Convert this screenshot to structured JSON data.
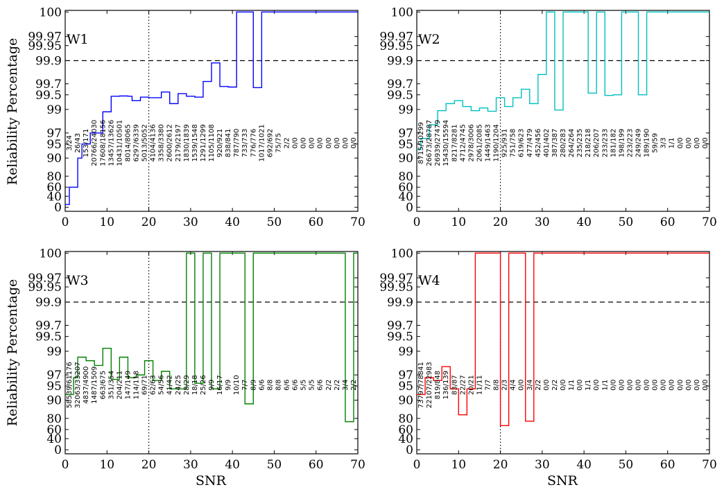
{
  "figure": {
    "ylabel": "Reliability Percentage",
    "xlabel": "SNR",
    "y_ticks": [
      "0",
      "40",
      "60",
      "80",
      "90",
      "95",
      "97",
      "99",
      "99.5",
      "99.7",
      "99.9",
      "99.95",
      "99.97",
      "100"
    ],
    "x_ticks": [
      "0",
      "10",
      "20",
      "30",
      "40",
      "50",
      "60",
      "70"
    ]
  },
  "chart_data": [
    {
      "type": "line",
      "step": true,
      "label": "W1",
      "color": "#0000ff",
      "xlim": [
        0,
        70
      ],
      "ylim": [
        0,
        100
      ],
      "y_scale": "nonlinear reliability scale (ticks 0 … 100)",
      "reference_lines": {
        "vertical_dotted_x": 20,
        "horizontal_dashed_y": 99.9
      },
      "x": [
        0,
        1,
        2,
        3,
        4,
        5,
        6,
        7,
        8,
        9,
        10,
        11,
        12,
        13,
        14,
        15,
        16,
        17,
        18,
        19,
        20,
        21,
        22,
        23,
        24,
        25,
        26,
        27,
        28,
        29,
        30,
        31,
        32,
        33,
        34,
        35,
        36,
        37,
        38,
        39,
        40,
        41,
        42,
        43,
        44,
        45,
        46,
        47,
        48,
        49,
        50,
        51,
        52,
        53,
        54,
        55,
        56,
        57,
        58,
        59,
        60,
        61,
        62,
        63,
        64,
        65,
        66,
        67,
        68,
        69,
        70
      ],
      "y": [
        10,
        60,
        60,
        90,
        95,
        95,
        97,
        97,
        97,
        98.8,
        98.8,
        99.45,
        99.45,
        99.46,
        99.46,
        99.45,
        99.3,
        99.3,
        99.42,
        99.42,
        99.4,
        99.4,
        99.4,
        99.55,
        99.55,
        99.2,
        99.2,
        99.52,
        99.52,
        99.45,
        99.45,
        99.42,
        99.42,
        99.72,
        99.72,
        99.88,
        99.88,
        99.65,
        99.65,
        99.64,
        99.64,
        100,
        100,
        100,
        100,
        99.63,
        99.63,
        100,
        100,
        100,
        100,
        100,
        100,
        100,
        100,
        100,
        100,
        100,
        100,
        100,
        100,
        100,
        100,
        100,
        100,
        100,
        100,
        100,
        100,
        100,
        100
      ],
      "annotations": [
        "3/24",
        "26/43",
        "153/171",
        "20766/24030",
        "17608/18156",
        "13457/13626",
        "10431/10501",
        "8014/8065",
        "6297/6339",
        "5013/5052",
        "4104/4136",
        "3358/3380",
        "2600/2612",
        "2179/2197",
        "1830/1839",
        "1539/1548",
        "1291/1299",
        "1105/1108",
        "920/921",
        "838/841",
        "787/790",
        "733/733",
        "776/776",
        "1017/1021",
        "692/692",
        "75/75",
        "2/2",
        "0/0",
        "0/0",
        "0/0",
        "0/0",
        "0/0",
        "0/0",
        "0/0",
        "0/0"
      ]
    },
    {
      "type": "line",
      "step": true,
      "label": "W2",
      "color": "#00bfbf",
      "xlim": [
        0,
        70
      ],
      "ylim": [
        0,
        100
      ],
      "y_scale": "nonlinear reliability scale (ticks 0 … 100)",
      "reference_lines": {
        "vertical_dotted_x": 20,
        "horizontal_dashed_y": 99.9
      },
      "x": [
        0,
        1,
        2,
        3,
        4,
        5,
        6,
        7,
        8,
        9,
        10,
        11,
        12,
        13,
        14,
        15,
        16,
        17,
        18,
        19,
        20,
        21,
        22,
        23,
        24,
        25,
        26,
        27,
        28,
        29,
        30,
        31,
        32,
        33,
        34,
        35,
        36,
        37,
        38,
        39,
        40,
        41,
        42,
        43,
        44,
        45,
        46,
        47,
        48,
        49,
        50,
        51,
        52,
        53,
        54,
        55,
        56,
        57,
        58,
        59,
        60,
        61,
        62,
        63,
        64,
        65,
        66,
        67,
        68,
        69,
        70
      ],
      "y": [
        93,
        96,
        96,
        97.7,
        97.7,
        98.9,
        98.9,
        99.2,
        99.2,
        99.3,
        99.3,
        99.1,
        99.1,
        98.9,
        98.9,
        99.05,
        99.05,
        98.85,
        98.85,
        99.4,
        99.4,
        99.1,
        99.1,
        99.4,
        99.4,
        99.6,
        99.6,
        99.2,
        99.2,
        99.78,
        99.78,
        100,
        100,
        98.95,
        98.95,
        100,
        100,
        100,
        100,
        100,
        100,
        99.53,
        99.53,
        100,
        100,
        99.48,
        99.48,
        99.5,
        99.5,
        100,
        100,
        100,
        100,
        99.5,
        99.5,
        100,
        100,
        100,
        100,
        100,
        100,
        100,
        100,
        100,
        100,
        100,
        100,
        100,
        100,
        100,
        100
      ],
      "annotations": [
        "8715/10299",
        "26673/28787",
        "26939/27479",
        "15430/15594",
        "8217/8281",
        "4712/4745",
        "2978/3006",
        "2061/2085",
        "1449/1463",
        "1190/1204",
        "925/931",
        "751/758",
        "619/623",
        "477/479",
        "452/456",
        "401/402",
        "387/387",
        "280/283",
        "264/264",
        "235/235",
        "218/218",
        "206/207",
        "233/233",
        "181/182",
        "198/199",
        "223/223",
        "249/249",
        "189/190",
        "59/59",
        "3/3",
        "1/1",
        "0/0",
        "0/0",
        "0/0",
        "0/0"
      ]
    },
    {
      "type": "line",
      "step": true,
      "label": "W3",
      "color": "#008000",
      "xlim": [
        0,
        70
      ],
      "ylim": [
        0,
        100
      ],
      "y_scale": "nonlinear reliability scale (ticks 0 … 100)",
      "reference_lines": {
        "vertical_dotted_x": 20,
        "horizontal_dashed_y": 99.9
      },
      "x": [
        0,
        1,
        2,
        3,
        4,
        5,
        6,
        7,
        8,
        9,
        10,
        11,
        12,
        13,
        14,
        15,
        16,
        17,
        18,
        19,
        20,
        21,
        22,
        23,
        24,
        25,
        26,
        27,
        28,
        29,
        30,
        31,
        32,
        33,
        34,
        35,
        36,
        37,
        38,
        39,
        40,
        41,
        42,
        43,
        44,
        45,
        46,
        47,
        48,
        49,
        50,
        51,
        52,
        53,
        54,
        55,
        56,
        57,
        58,
        59,
        60,
        61,
        62,
        63,
        64,
        65,
        66,
        67,
        68,
        69,
        70
      ],
      "y": [
        92,
        92,
        96.5,
        98.5,
        98.5,
        98.2,
        98.2,
        97.8,
        97.8,
        99.1,
        99.1,
        96.2,
        96.2,
        98.5,
        98.5,
        96.5,
        96.5,
        97,
        97,
        98.2,
        98.2,
        96,
        96,
        97.3,
        97.3,
        94,
        94,
        94,
        94,
        100,
        100,
        95.5,
        95.5,
        100,
        100,
        94,
        94,
        100,
        100,
        100,
        100,
        100,
        100,
        88,
        88,
        100,
        100,
        100,
        100,
        100,
        100,
        100,
        100,
        100,
        100,
        100,
        100,
        100,
        100,
        100,
        100,
        100,
        100,
        100,
        100,
        100,
        100,
        74,
        74,
        100,
        100
      ],
      "annotations": [
        "58539/61176",
        "32063/33207",
        "4837/4900",
        "1487/1509",
        "663/675",
        "351/354",
        "204/211",
        "147/149",
        "114/118",
        "69/71",
        "62/63",
        "54/56",
        "41/42",
        "24/25",
        "28/29",
        "18/18",
        "25/26",
        "9/9",
        "16/17",
        "9/9",
        "10/10",
        "7/7",
        "8/9",
        "6/6",
        "8/8",
        "8/8",
        "6/6",
        "6/6",
        "5/5",
        "5/5",
        "6/6",
        "2/2",
        "2/2",
        "3/4",
        "2/2"
      ]
    },
    {
      "type": "line",
      "step": true,
      "label": "W4",
      "color": "#ff0000",
      "xlim": [
        0,
        70
      ],
      "ylim": [
        0,
        100
      ],
      "y_scale": "nonlinear reliability scale (ticks 0 … 100)",
      "reference_lines": {
        "vertical_dotted_x": 20,
        "horizontal_dashed_y": 99.9
      },
      "x": [
        0,
        1,
        2,
        3,
        4,
        5,
        6,
        7,
        8,
        9,
        10,
        11,
        12,
        13,
        14,
        15,
        16,
        17,
        18,
        19,
        20,
        21,
        22,
        23,
        24,
        25,
        26,
        27,
        28,
        29,
        30,
        31,
        32,
        33,
        34,
        35,
        36,
        37,
        38,
        39,
        40,
        41,
        42,
        43,
        44,
        45,
        46,
        47,
        48,
        49,
        50,
        51,
        52,
        53,
        54,
        55,
        56,
        57,
        58,
        59,
        60,
        61,
        62,
        63,
        64,
        65,
        66,
        67,
        68,
        69,
        70
      ],
      "y": [
        92,
        92,
        96.5,
        96.5,
        96,
        96,
        97.7,
        97.7,
        94,
        94,
        82,
        82,
        94,
        94,
        100,
        100,
        100,
        100,
        100,
        100,
        67,
        67,
        100,
        100,
        100,
        100,
        75,
        75,
        100,
        100,
        100,
        100,
        100,
        100,
        100,
        100,
        100,
        100,
        100,
        100,
        100,
        100,
        100,
        100,
        100,
        100,
        100,
        100,
        100,
        100,
        100,
        100,
        100,
        100,
        100,
        100,
        100,
        100,
        100,
        100,
        100,
        100,
        100,
        100,
        100,
        100,
        100,
        100,
        100,
        100,
        100
      ],
      "annotations": [
        "73797/78841",
        "22107/22983",
        "819/848",
        "136/139",
        "83/87",
        "22/27",
        "20/21",
        "11/11",
        "7/7",
        "8/8",
        "2/3",
        "4/4",
        "0/0",
        "3/4",
        "2/2",
        "0/0",
        "2/2",
        "0/0",
        "1/1",
        "0/0",
        "1/1",
        "0/0",
        "1/1",
        "0/0",
        "0/0",
        "0/0",
        "0/0",
        "0/0",
        "0/0",
        "0/0",
        "0/0",
        "0/0",
        "0/0",
        "0/0",
        "0/0"
      ]
    }
  ]
}
